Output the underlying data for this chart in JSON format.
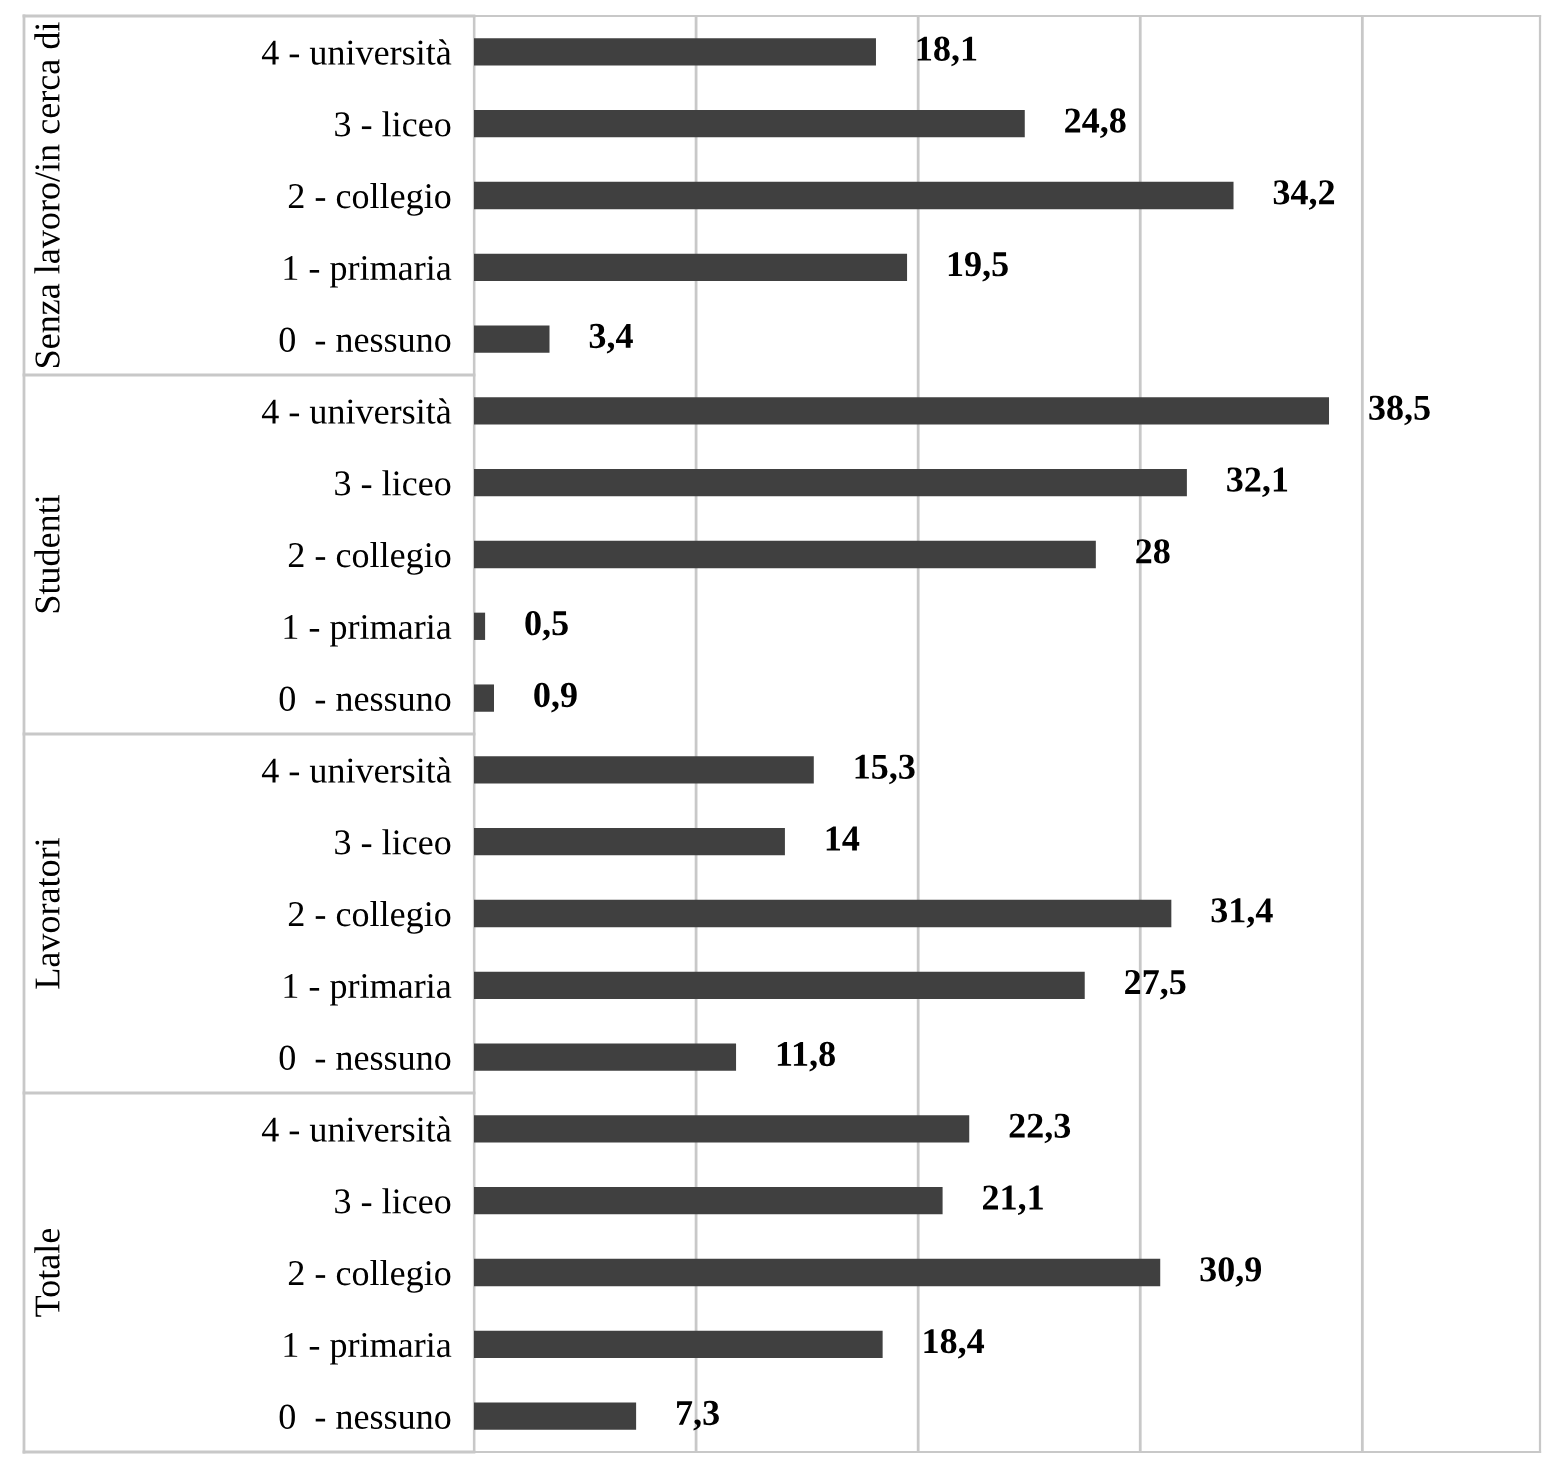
{
  "chart_data": {
    "type": "bar",
    "orientation": "horizontal",
    "categories": [
      "4 - università",
      "3 - liceo",
      "2 - collegio",
      "1 - primaria",
      "0  - nessuno",
      "4 - università",
      "3 - liceo",
      "2 - collegio",
      "1 - primaria",
      "0  - nessuno",
      "4 - università",
      "3 - liceo",
      "2 - collegio",
      "1 - primaria",
      "0  - nessuno",
      "4 - università",
      "3 - liceo",
      "2 - collegio",
      "1 - primaria",
      "0  - nessuno"
    ],
    "values": [
      18.1,
      24.8,
      34.2,
      19.5,
      3.4,
      38.5,
      32.1,
      28,
      0.5,
      0.9,
      15.3,
      14,
      31.4,
      27.5,
      11.8,
      22.3,
      21.1,
      30.9,
      18.4,
      7.3
    ],
    "color": "#404040",
    "annotations": [
      "Senza lavoro/in cerca di",
      "Studenti",
      "Lavoratori",
      "Totale"
    ],
    "xlim": [
      0,
      48
    ],
    "xticks": [
      {
        "value": 0,
        "label": null
      },
      {
        "value": 10,
        "label": null
      },
      {
        "value": 20,
        "label": null
      },
      {
        "value": 30,
        "label": null
      },
      {
        "value": 40,
        "label": null
      }
    ],
    "value_labels": [
      "18,1",
      "24,8",
      "34,2",
      "19,5",
      "3,4",
      "38,5",
      "32,1",
      "28",
      "0,5",
      "0,9",
      "15,3",
      "14",
      "31,4",
      "27,5",
      "11,8",
      "22,3",
      "21,1",
      "30,9",
      "18,4",
      "7,3"
    ],
    "grid": "x",
    "tick_labels": "y"
  }
}
